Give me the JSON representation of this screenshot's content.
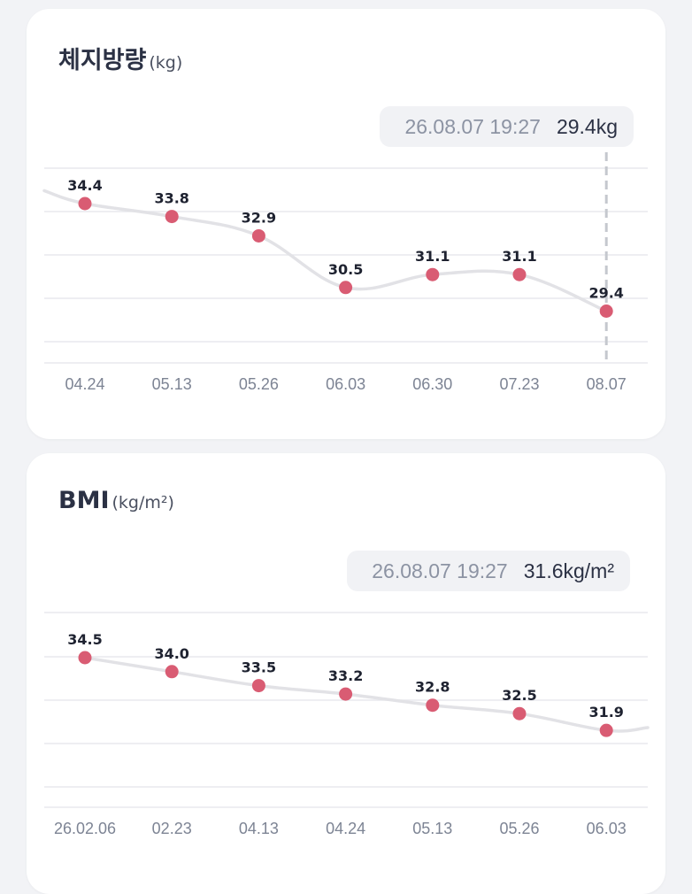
{
  "weight_card": {
    "title": "체지방량",
    "unit": "(kg)",
    "tooltip_time": "26.08.07 19:27",
    "tooltip_value": "29.4kg"
  },
  "bmi_card": {
    "title": "BMI",
    "unit": "(kg/m²)",
    "tooltip_time": "26.08.07 19:27",
    "tooltip_value": "31.6kg/m²"
  },
  "colors": {
    "point": "#d95c73",
    "line": "#e2e2e6",
    "grid": "#e8e9ed",
    "guide": "#c5c8ce"
  },
  "chart_data": [
    {
      "type": "line",
      "title": "체지방량",
      "ylabel": "(kg)",
      "categories": [
        "04.24",
        "05.13",
        "05.26",
        "06.03",
        "06.30",
        "07.23",
        "08.07"
      ],
      "values": [
        34.4,
        33.8,
        32.9,
        30.5,
        31.1,
        31.1,
        29.4
      ],
      "selected_index": 6,
      "grid": true
    },
    {
      "type": "line",
      "title": "BMI",
      "ylabel": "(kg/m²)",
      "categories": [
        "26.02.06",
        "02.23",
        "04.13",
        "04.24",
        "05.13",
        "05.26",
        "06.03"
      ],
      "values": [
        34.5,
        34.0,
        33.5,
        33.2,
        32.8,
        32.5,
        31.9
      ],
      "grid": true
    }
  ]
}
